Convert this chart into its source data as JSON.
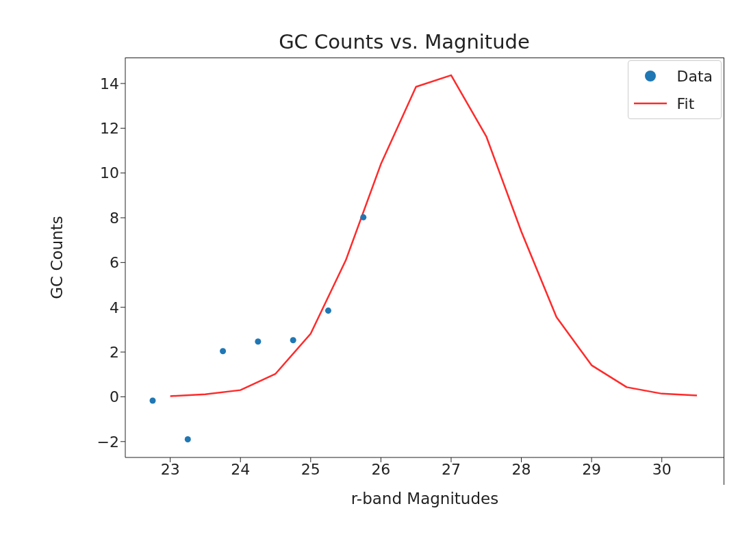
{
  "chart_data": {
    "type": "scatter",
    "title": "GC Counts vs. Magnitude",
    "xlabel": "r-band Magnitudes",
    "ylabel": "GC Counts",
    "series": [
      {
        "name": "Data",
        "marker": "circle",
        "color": "#1f77b4",
        "x": [
          22.75,
          23.25,
          23.75,
          24.25,
          24.75,
          25.25,
          25.75
        ],
        "values": [
          -0.17,
          -1.9,
          2.04,
          2.47,
          2.53,
          3.85,
          8.02
        ]
      },
      {
        "name": "Fit",
        "type": "line",
        "marker": "none",
        "color": "#ff2a2a",
        "x": [
          23,
          23.5,
          24,
          24.5,
          25,
          25.5,
          26,
          26.5,
          27,
          27.5,
          28,
          28.5,
          29,
          29.5,
          30,
          30.5
        ],
        "values": [
          0.03,
          0.11,
          0.3,
          1.03,
          2.82,
          6.1,
          10.4,
          13.85,
          14.37,
          11.64,
          7.38,
          3.56,
          1.41,
          0.43,
          0.14,
          0.06
        ]
      }
    ],
    "xlim": [
      22.36,
      30.89
    ],
    "xticks": [
      23,
      24,
      25,
      26,
      27,
      28,
      29,
      30
    ],
    "ylim": [
      -2.71,
      15.16
    ],
    "yticks": [
      -2,
      0,
      2,
      4,
      6,
      8,
      10,
      12,
      14
    ],
    "grid": false,
    "legend": "top right"
  }
}
